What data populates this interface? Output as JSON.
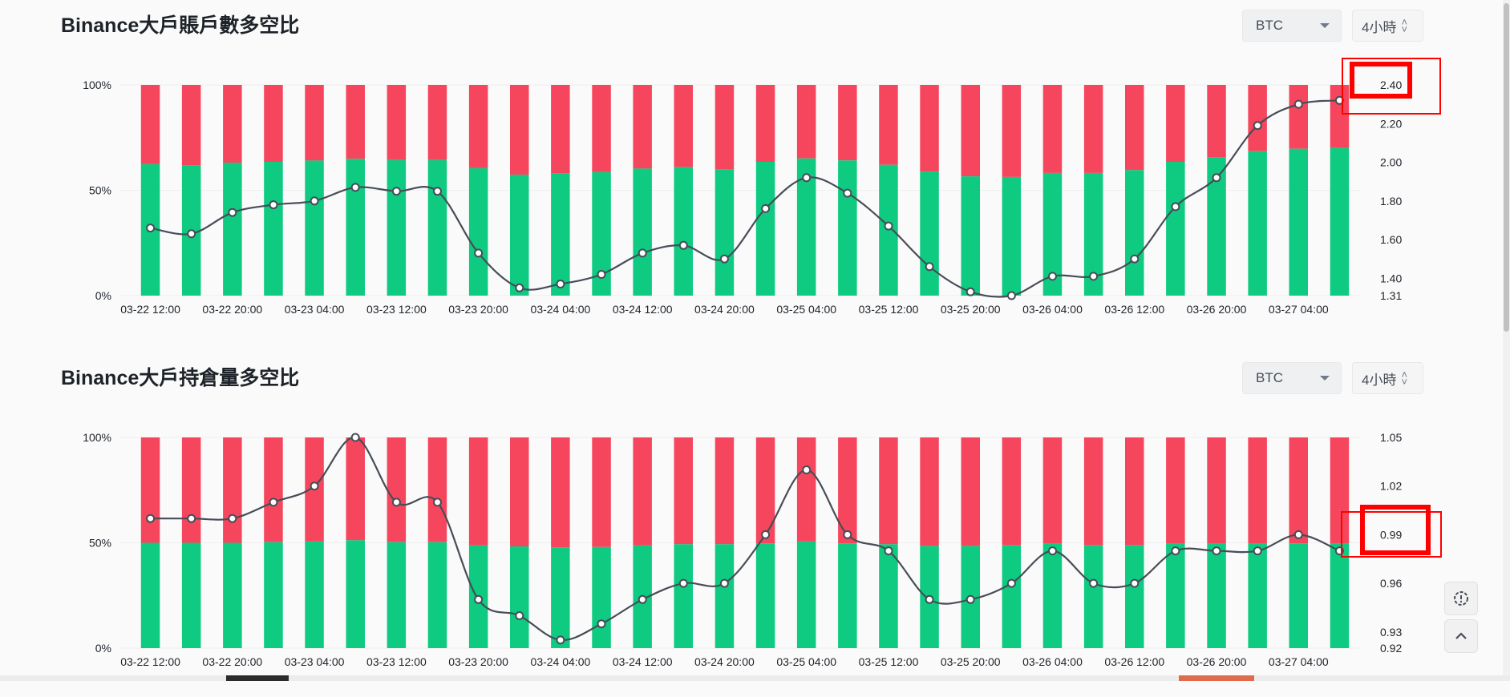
{
  "colors": {
    "long": "#0ecb81",
    "short": "#f6465d",
    "line": "#474d57",
    "axis_text": "#1e2329",
    "annotation": "#ff0000"
  },
  "controls": {
    "symbol": "BTC",
    "period": "4小時"
  },
  "chart_data": [
    {
      "type": "bar",
      "title": "Binance大戶賬戶數多空比",
      "stacked": true,
      "x": [
        "03-22 12:00",
        "03-22 16:00",
        "03-22 20:00",
        "03-23 00:00",
        "03-23 04:00",
        "03-23 08:00",
        "03-23 12:00",
        "03-23 16:00",
        "03-23 20:00",
        "03-24 00:00",
        "03-24 04:00",
        "03-24 08:00",
        "03-24 12:00",
        "03-24 16:00",
        "03-24 20:00",
        "03-25 00:00",
        "03-25 04:00",
        "03-25 08:00",
        "03-25 12:00",
        "03-25 16:00",
        "03-25 20:00",
        "03-26 00:00",
        "03-26 04:00",
        "03-26 08:00",
        "03-26 12:00",
        "03-26 16:00",
        "03-26 20:00",
        "03-27 00:00",
        "03-27 04:00",
        "03-27 08:00"
      ],
      "x_tick_labels": [
        "03-22 12:00",
        "03-22 20:00",
        "03-23 04:00",
        "03-23 12:00",
        "03-23 20:00",
        "03-24 04:00",
        "03-24 12:00",
        "03-24 20:00",
        "03-25 04:00",
        "03-25 12:00",
        "03-25 20:00",
        "03-26 04:00",
        "03-26 12:00",
        "03-26 20:00",
        "03-27 04:00"
      ],
      "y_left_ticks": [
        "100%",
        "50%",
        "0%"
      ],
      "y_right_ticks": [
        "2.40",
        "2.20",
        "2.00",
        "1.80",
        "1.60",
        "1.40",
        "1.31"
      ],
      "y_right_range": [
        1.31,
        2.4
      ],
      "series": [
        {
          "name": "long_pct",
          "values": [
            62.4,
            61.7,
            63.1,
            63.5,
            64.1,
            64.9,
            64.4,
            64.4,
            60.5,
            57.4,
            57.9,
            58.6,
            60.3,
            61.0,
            59.8,
            63.5,
            65.1,
            64.2,
            62.1,
            58.9,
            56.6,
            56.3,
            58.2,
            58.2,
            59.6,
            63.5,
            65.5,
            68.5,
            69.7,
            70.1
          ]
        },
        {
          "name": "short_pct",
          "values": [
            37.6,
            38.3,
            36.9,
            36.5,
            35.9,
            35.1,
            35.6,
            35.6,
            39.5,
            42.6,
            42.1,
            41.4,
            39.7,
            39.0,
            40.2,
            36.5,
            34.9,
            35.8,
            37.9,
            41.1,
            43.4,
            43.7,
            41.8,
            41.8,
            40.4,
            36.5,
            34.5,
            31.5,
            30.3,
            29.9
          ]
        },
        {
          "name": "ratio",
          "axis": "right",
          "values": [
            1.66,
            1.63,
            1.74,
            1.78,
            1.8,
            1.87,
            1.85,
            1.85,
            1.53,
            1.35,
            1.37,
            1.42,
            1.53,
            1.57,
            1.5,
            1.76,
            1.92,
            1.84,
            1.67,
            1.46,
            1.33,
            1.31,
            1.41,
            1.41,
            1.5,
            1.77,
            1.92,
            2.19,
            2.3,
            2.32
          ]
        }
      ],
      "ylim_left": [
        0,
        100
      ]
    },
    {
      "type": "bar",
      "title": "Binance大戶持倉量多空比",
      "stacked": true,
      "x": [
        "03-22 12:00",
        "03-22 16:00",
        "03-22 20:00",
        "03-23 00:00",
        "03-23 04:00",
        "03-23 08:00",
        "03-23 12:00",
        "03-23 16:00",
        "03-23 20:00",
        "03-24 00:00",
        "03-24 04:00",
        "03-24 08:00",
        "03-24 12:00",
        "03-24 16:00",
        "03-24 20:00",
        "03-25 00:00",
        "03-25 04:00",
        "03-25 08:00",
        "03-25 12:00",
        "03-25 16:00",
        "03-25 20:00",
        "03-26 00:00",
        "03-26 04:00",
        "03-26 08:00",
        "03-26 12:00",
        "03-26 16:00",
        "03-26 20:00",
        "03-27 00:00",
        "03-27 04:00",
        "03-27 08:00"
      ],
      "x_tick_labels": [
        "03-22 12:00",
        "03-22 20:00",
        "03-23 04:00",
        "03-23 12:00",
        "03-23 20:00",
        "03-24 04:00",
        "03-24 12:00",
        "03-24 20:00",
        "03-25 04:00",
        "03-25 12:00",
        "03-25 20:00",
        "03-26 04:00",
        "03-26 12:00",
        "03-26 20:00",
        "03-27 04:00"
      ],
      "y_left_ticks": [
        "100%",
        "50%",
        "0%"
      ],
      "y_right_ticks": [
        "1.05",
        "1.02",
        "0.99",
        "0.96",
        "0.93",
        "0.92"
      ],
      "y_right_range": [
        0.92,
        1.05
      ],
      "series": [
        {
          "name": "long_pct",
          "values": [
            50.0,
            50.0,
            50.0,
            50.3,
            50.6,
            51.2,
            50.3,
            50.3,
            48.7,
            48.3,
            47.8,
            48.0,
            48.7,
            49.3,
            49.3,
            49.7,
            50.6,
            49.7,
            49.3,
            48.5,
            48.5,
            48.8,
            49.5,
            48.8,
            48.8,
            49.5,
            49.5,
            49.5,
            49.7,
            49.5
          ]
        },
        {
          "name": "short_pct",
          "values": [
            50.0,
            50.0,
            50.0,
            49.7,
            49.4,
            48.8,
            49.7,
            49.7,
            51.3,
            51.7,
            52.2,
            52.0,
            51.3,
            50.7,
            50.7,
            50.3,
            49.4,
            50.3,
            50.7,
            51.5,
            51.5,
            51.2,
            50.5,
            51.2,
            51.2,
            50.5,
            50.5,
            50.5,
            50.3,
            50.5
          ]
        },
        {
          "name": "ratio",
          "axis": "right",
          "values": [
            1.0,
            1.0,
            1.0,
            1.01,
            1.02,
            1.05,
            1.01,
            1.01,
            0.95,
            0.94,
            0.925,
            0.935,
            0.95,
            0.96,
            0.96,
            0.99,
            1.03,
            0.99,
            0.98,
            0.95,
            0.95,
            0.96,
            0.98,
            0.96,
            0.96,
            0.98,
            0.98,
            0.98,
            0.99,
            0.98
          ]
        }
      ],
      "ylim_left": [
        0,
        100
      ]
    }
  ]
}
